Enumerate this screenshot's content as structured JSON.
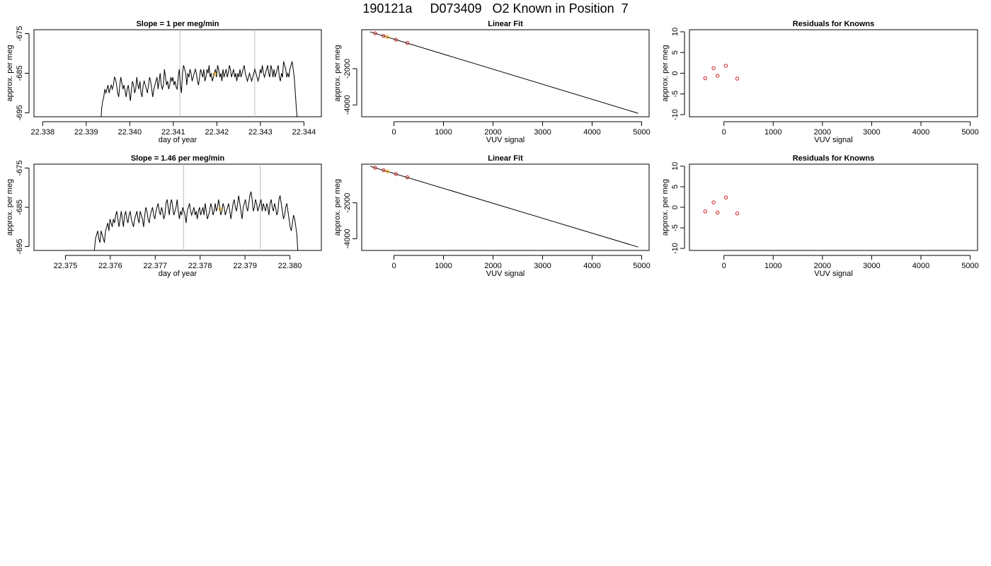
{
  "page": {
    "title": "190121a     D073409   O2 Known in Position  7"
  },
  "colors": {
    "line": "#000000",
    "axis": "#000000",
    "vline": "#bebebe",
    "point_red": "#cc2222",
    "point_orange": "#ffa500"
  },
  "chart_data": [
    {
      "type": "line",
      "title": "Slope =  1  per meg/min",
      "xlabel": "day of year",
      "ylabel": "approx. per meg",
      "xlim": [
        22.3378,
        22.3444
      ],
      "ylim": [
        -696,
        -674
      ],
      "xticks": [
        22.338,
        22.339,
        22.34,
        22.341,
        22.342,
        22.343,
        22.344
      ],
      "xtick_labels": [
        "22.338",
        "22.339",
        "22.340",
        "22.341",
        "22.342",
        "22.343",
        "22.344"
      ],
      "yticks": [
        -675,
        -685,
        -695
      ],
      "ytick_labels": [
        "-675",
        "-685",
        "-695"
      ],
      "vlines": [
        22.34115,
        22.34287
      ],
      "marker": {
        "x": 22.34195,
        "y": -685.2
      },
      "series": [
        {
          "x0": 22.33933,
          "x1": 22.34385,
          "y": [
            -698,
            -694,
            -692,
            -691,
            -689,
            -690,
            -689,
            -688,
            -690,
            -689,
            -688,
            -689,
            -688,
            -686,
            -686.5,
            -688,
            -690,
            -691,
            -688,
            -686,
            -687.5,
            -689,
            -688,
            -689.5,
            -691,
            -689,
            -688,
            -690,
            -692,
            -689,
            -687,
            -688,
            -690,
            -689,
            -686,
            -688,
            -689,
            -687,
            -690,
            -691,
            -688,
            -687,
            -688,
            -689,
            -690,
            -688,
            -686,
            -687,
            -689,
            -691,
            -689,
            -688,
            -687,
            -686,
            -689,
            -687,
            -685,
            -688,
            -689,
            -688,
            -684,
            -686,
            -688,
            -687,
            -689,
            -688,
            -686,
            -687,
            -686,
            -688,
            -687,
            -688.5,
            -689,
            -686,
            -684,
            -688,
            -690,
            -685,
            -683,
            -684,
            -685,
            -688,
            -685,
            -686,
            -684,
            -685,
            -687,
            -686,
            -685,
            -684,
            -685,
            -687,
            -688,
            -686,
            -684,
            -685,
            -686,
            -684,
            -687,
            -686,
            -684,
            -685,
            -683,
            -686,
            -685,
            -687,
            -686,
            -685,
            -684,
            -686,
            -683,
            -684,
            -686,
            -685,
            -687,
            -684,
            -686,
            -685,
            -684,
            -686,
            -685,
            -683,
            -684,
            -686,
            -685,
            -684,
            -686,
            -685,
            -687,
            -685,
            -686,
            -684,
            -686,
            -685,
            -684,
            -683,
            -685,
            -686,
            -687,
            -686,
            -685,
            -686,
            -687,
            -686,
            -685,
            -684,
            -685,
            -686,
            -687,
            -686,
            -684,
            -685,
            -683,
            -685,
            -686,
            -685,
            -684,
            -683,
            -685,
            -686,
            -683,
            -684,
            -686,
            -684,
            -686,
            -685,
            -684,
            -683,
            -686,
            -687,
            -685,
            -686,
            -682,
            -683,
            -684,
            -686,
            -685,
            -686,
            -684,
            -683,
            -682,
            -684,
            -686,
            -690,
            -694,
            -697
          ]
        }
      ]
    },
    {
      "type": "scatter",
      "title": "Linear Fit",
      "xlabel": "VUV signal",
      "ylabel": "approx. per meg",
      "xlim": [
        -650,
        5150
      ],
      "ylim": [
        -4650,
        150
      ],
      "xticks": [
        0,
        1000,
        2000,
        3000,
        4000,
        5000
      ],
      "xtick_labels": [
        "0",
        "1000",
        "2000",
        "3000",
        "4000",
        "5000"
      ],
      "yticks": [
        -2000,
        -4000
      ],
      "ytick_labels": [
        "-2000",
        "-4000"
      ],
      "fit_line": {
        "x": [
          -480,
          4930
        ],
        "y": [
          30,
          -4460
        ]
      },
      "points": [
        {
          "x": -380,
          "y": -50,
          "color": "red"
        },
        {
          "x": -210,
          "y": -190,
          "color": "red"
        },
        {
          "x": -130,
          "y": -250,
          "color": "orange"
        },
        {
          "x": 40,
          "y": -400,
          "color": "red"
        },
        {
          "x": 270,
          "y": -580,
          "color": "red"
        }
      ]
    },
    {
      "type": "scatter",
      "title": "Residuals for Knowns",
      "xlabel": "VUV signal",
      "ylabel": "approx. per meg",
      "xlim": [
        -700,
        5150
      ],
      "ylim": [
        -10.5,
        10.5
      ],
      "xticks": [
        0,
        1000,
        2000,
        3000,
        4000,
        5000
      ],
      "xtick_labels": [
        "0",
        "1000",
        "2000",
        "3000",
        "4000",
        "5000"
      ],
      "yticks": [
        10,
        5,
        0,
        -5,
        -10
      ],
      "ytick_labels": [
        "10",
        "5",
        "0",
        "-5",
        "-10"
      ],
      "points": [
        {
          "x": -380,
          "y": -1.2,
          "color": "red"
        },
        {
          "x": -210,
          "y": 1.2,
          "color": "red"
        },
        {
          "x": -130,
          "y": -0.6,
          "color": "red"
        },
        {
          "x": 40,
          "y": 1.8,
          "color": "red"
        },
        {
          "x": 270,
          "y": -1.3,
          "color": "red"
        }
      ]
    },
    {
      "type": "line",
      "title": "Slope =  1.46  per meg/min",
      "xlabel": "day of year",
      "ylabel": "approx. per meg",
      "xlim": [
        22.3743,
        22.3807
      ],
      "ylim": [
        -696,
        -674
      ],
      "xticks": [
        22.375,
        22.376,
        22.377,
        22.378,
        22.379,
        22.38
      ],
      "xtick_labels": [
        "22.375",
        "22.376",
        "22.377",
        "22.378",
        "22.379",
        "22.380"
      ],
      "yticks": [
        -675,
        -685,
        -695
      ],
      "ytick_labels": [
        "-675",
        "-685",
        "-695"
      ],
      "vlines": [
        22.37763,
        22.37934
      ],
      "marker": {
        "x": 22.37845,
        "y": -685.5
      },
      "series": [
        {
          "x0": 22.37562,
          "x1": 22.38018,
          "y": [
            -697,
            -696,
            -693,
            -692,
            -691,
            -693,
            -694,
            -691,
            -692,
            -693,
            -694,
            -691,
            -690,
            -689,
            -691,
            -688,
            -689,
            -690,
            -688,
            -689,
            -687,
            -686,
            -688,
            -690,
            -688,
            -686,
            -688,
            -690,
            -687,
            -686,
            -688,
            -689,
            -687,
            -686,
            -688,
            -689,
            -690,
            -688,
            -687,
            -686,
            -688,
            -689,
            -686,
            -687,
            -688,
            -690,
            -687,
            -685,
            -686,
            -688,
            -689,
            -687,
            -686,
            -685,
            -687,
            -688,
            -686,
            -685,
            -684,
            -686,
            -687,
            -685,
            -686,
            -688,
            -687,
            -684,
            -683,
            -685,
            -687,
            -684,
            -683,
            -685,
            -687,
            -686,
            -685,
            -683,
            -686,
            -688,
            -686,
            -687,
            -685,
            -686,
            -687,
            -689,
            -686,
            -685,
            -684,
            -686,
            -687,
            -686,
            -685,
            -687,
            -686,
            -688,
            -686,
            -685,
            -687,
            -686,
            -685,
            -687,
            -684,
            -686,
            -688,
            -687,
            -686,
            -684,
            -685,
            -687,
            -686,
            -684,
            -686,
            -685,
            -683,
            -685,
            -687,
            -686,
            -684,
            -685,
            -687,
            -686,
            -685,
            -684,
            -686,
            -688,
            -686,
            -684,
            -683,
            -685,
            -686,
            -684,
            -682,
            -684,
            -686,
            -688,
            -685,
            -684,
            -683,
            -685,
            -686,
            -684,
            -682,
            -681,
            -683,
            -686,
            -685,
            -683,
            -684,
            -686,
            -685,
            -684,
            -683,
            -686,
            -684,
            -685,
            -686,
            -684,
            -685,
            -687,
            -684,
            -683,
            -685,
            -686,
            -684,
            -685,
            -687,
            -686,
            -683,
            -682,
            -684,
            -686,
            -688,
            -687,
            -685,
            -684,
            -686,
            -688,
            -690,
            -691,
            -689,
            -687,
            -688,
            -690,
            -692,
            -697
          ]
        }
      ]
    },
    {
      "type": "scatter",
      "title": "Linear Fit",
      "xlabel": "VUV signal",
      "ylabel": "approx. per meg",
      "xlim": [
        -650,
        5150
      ],
      "ylim": [
        -4650,
        150
      ],
      "xticks": [
        0,
        1000,
        2000,
        3000,
        4000,
        5000
      ],
      "xtick_labels": [
        "0",
        "1000",
        "2000",
        "3000",
        "4000",
        "5000"
      ],
      "yticks": [
        -2000,
        -4000
      ],
      "ytick_labels": [
        "-2000",
        "-4000"
      ],
      "fit_line": {
        "x": [
          -480,
          4930
        ],
        "y": [
          30,
          -4460
        ]
      },
      "points": [
        {
          "x": -380,
          "y": -50,
          "color": "red"
        },
        {
          "x": -210,
          "y": -190,
          "color": "red"
        },
        {
          "x": -130,
          "y": -250,
          "color": "orange"
        },
        {
          "x": 40,
          "y": -400,
          "color": "red"
        },
        {
          "x": 270,
          "y": -580,
          "color": "red"
        }
      ]
    },
    {
      "type": "scatter",
      "title": "Residuals for Knowns",
      "xlabel": "VUV signal",
      "ylabel": "approx. per meg",
      "xlim": [
        -700,
        5150
      ],
      "ylim": [
        -10.5,
        10.5
      ],
      "xticks": [
        0,
        1000,
        2000,
        3000,
        4000,
        5000
      ],
      "xtick_labels": [
        "0",
        "1000",
        "2000",
        "3000",
        "4000",
        "5000"
      ],
      "yticks": [
        10,
        5,
        0,
        -5,
        -10
      ],
      "ytick_labels": [
        "10",
        "5",
        "0",
        "-5",
        "-10"
      ],
      "points": [
        {
          "x": -380,
          "y": -1.0,
          "color": "red"
        },
        {
          "x": -210,
          "y": 1.2,
          "color": "red"
        },
        {
          "x": -130,
          "y": -1.3,
          "color": "red"
        },
        {
          "x": 40,
          "y": 2.4,
          "color": "red"
        },
        {
          "x": 270,
          "y": -1.5,
          "color": "red"
        }
      ]
    }
  ]
}
